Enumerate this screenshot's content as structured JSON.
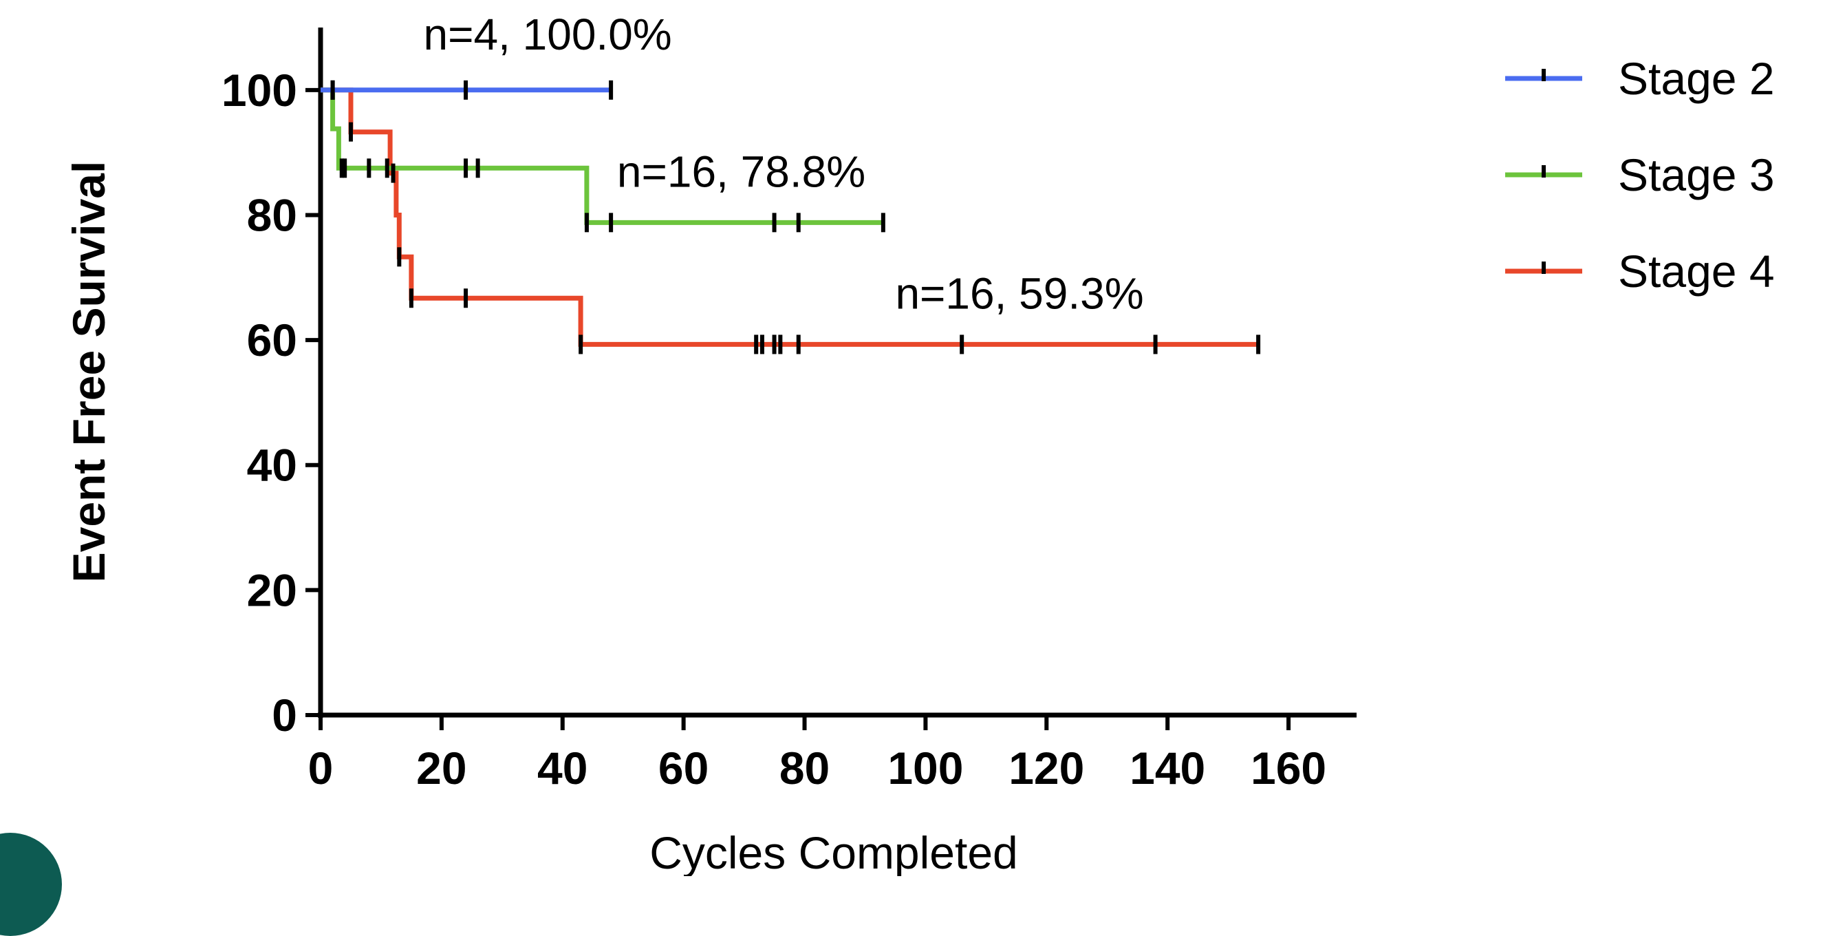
{
  "chart_data": {
    "type": "line",
    "subtype": "kaplan-meier",
    "title": "",
    "xlabel": "Cycles Completed",
    "ylabel": "Event Free Survival",
    "xlim": [
      0,
      170
    ],
    "ylim": [
      0,
      110
    ],
    "xticks": [
      0,
      20,
      40,
      60,
      80,
      100,
      120,
      140,
      160
    ],
    "yticks": [
      0,
      20,
      40,
      60,
      80,
      100
    ],
    "grid": false,
    "legend_position": "top-right",
    "series": [
      {
        "name": "Stage 2",
        "color": "#4a6cf0",
        "steps": [
          [
            0,
            100
          ],
          [
            48,
            100
          ]
        ],
        "censor_x": [
          2,
          24,
          48
        ],
        "annotation": "n=4, 100.0%",
        "annotation_at": [
          17,
          106.5
        ]
      },
      {
        "name": "Stage 3",
        "color": "#6cc43c",
        "steps": [
          [
            0,
            100
          ],
          [
            2,
            100
          ],
          [
            2,
            93.8
          ],
          [
            3,
            93.8
          ],
          [
            3,
            87.5
          ],
          [
            44,
            87.5
          ],
          [
            44,
            78.8
          ],
          [
            93,
            78.8
          ]
        ],
        "censor_x": [
          3.5,
          4,
          8,
          11,
          24,
          26,
          44,
          48,
          75,
          79,
          93
        ],
        "annotation": "n=16, 78.8%",
        "annotation_at": [
          49,
          84.5
        ]
      },
      {
        "name": "Stage 4",
        "color": "#e8472a",
        "steps": [
          [
            0,
            100
          ],
          [
            5,
            100
          ],
          [
            5,
            93.3
          ],
          [
            11.5,
            93.3
          ],
          [
            11.5,
            86.7
          ],
          [
            12.5,
            86.7
          ],
          [
            12.5,
            80
          ],
          [
            13,
            80
          ],
          [
            13,
            73.3
          ],
          [
            15,
            73.3
          ],
          [
            15,
            66.7
          ],
          [
            43,
            66.7
          ],
          [
            43,
            59.3
          ],
          [
            155,
            59.3
          ]
        ],
        "censor_x": [
          2,
          5,
          12,
          13,
          15,
          24,
          43,
          72,
          73,
          75,
          76,
          79,
          106,
          138,
          155
        ],
        "annotation": "n=16, 59.3%",
        "annotation_at": [
          95,
          65
        ]
      }
    ]
  }
}
